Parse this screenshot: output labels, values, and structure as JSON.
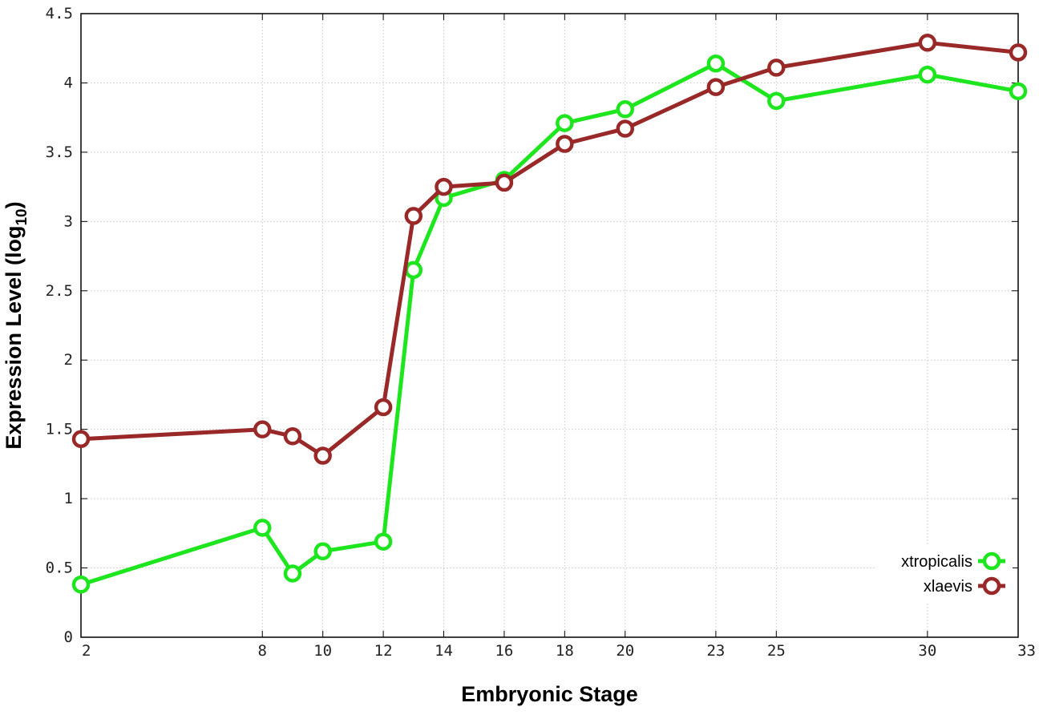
{
  "chart_data": {
    "type": "line",
    "xlabel": "Embryonic Stage",
    "ylabel": "Expression Level (log",
    "ylabel_subscript": "10",
    "ylabel_suffix": ")",
    "ylim": [
      0,
      4.5
    ],
    "xlim": [
      2,
      33
    ],
    "x_ticks": [
      2,
      8,
      10,
      12,
      14,
      16,
      18,
      20,
      23,
      25,
      30,
      33
    ],
    "y_ticks": [
      0,
      0.5,
      1,
      1.5,
      2,
      2.5,
      3,
      3.5,
      4,
      4.5
    ],
    "y_tick_labels": [
      "0",
      "0.5",
      "1",
      "1.5",
      "2",
      "2.5",
      "3",
      "3.5",
      "4",
      "4.5"
    ],
    "x": [
      2,
      8,
      9,
      10,
      12,
      13,
      14,
      16,
      18,
      20,
      23,
      25,
      30,
      33
    ],
    "grid": true,
    "legend_position": "bottom-right",
    "series": [
      {
        "name": "xtropicalis",
        "color": "#1ee61e",
        "values": [
          0.38,
          0.79,
          0.46,
          0.62,
          0.69,
          2.65,
          3.17,
          3.3,
          3.71,
          3.81,
          4.14,
          3.87,
          4.06,
          3.94
        ]
      },
      {
        "name": "xlaevis",
        "color": "#992828",
        "values": [
          1.43,
          1.5,
          1.45,
          1.31,
          1.66,
          3.04,
          3.25,
          3.28,
          3.56,
          3.67,
          3.97,
          4.11,
          4.29,
          4.22
        ]
      }
    ]
  }
}
